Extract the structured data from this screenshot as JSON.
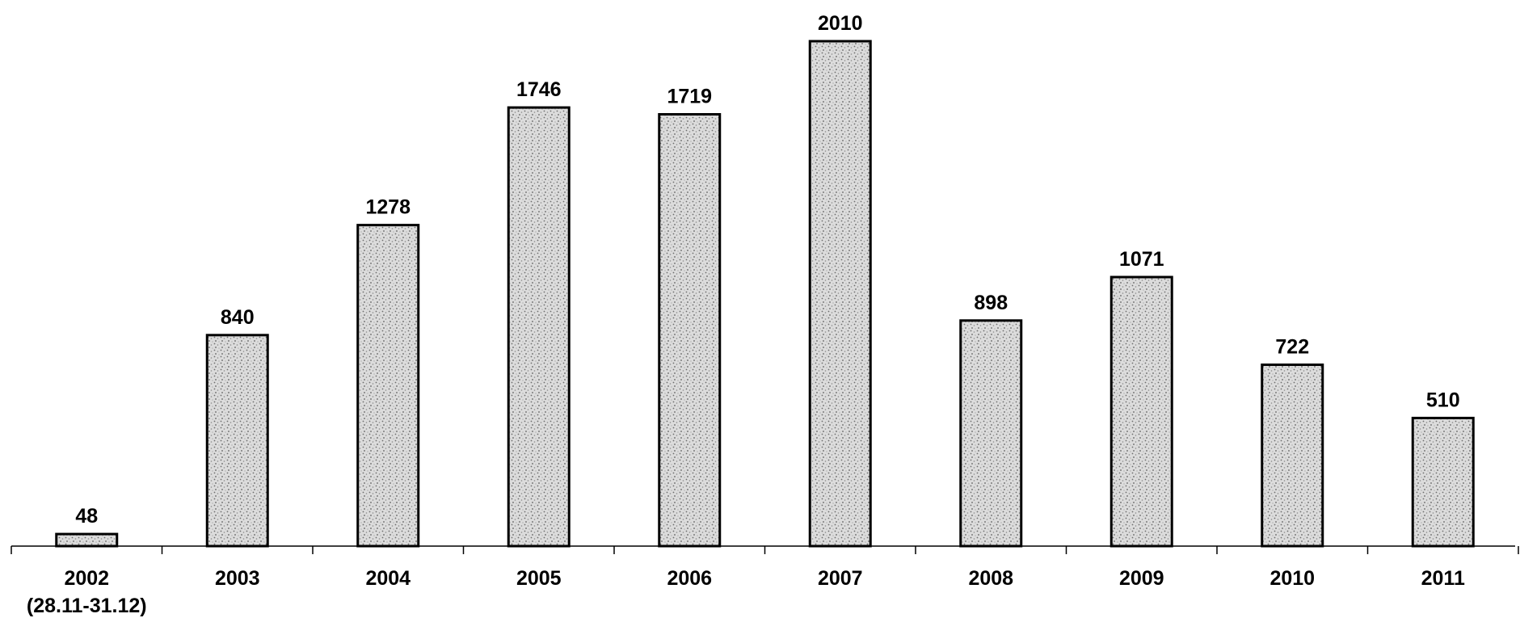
{
  "chart_data": {
    "type": "bar",
    "categories": [
      "2002",
      "2003",
      "2004",
      "2005",
      "2006",
      "2007",
      "2008",
      "2009",
      "2010",
      "2011"
    ],
    "category_sublabels": [
      "(28.11-31.12)",
      "",
      "",
      "",
      "",
      "",
      "",
      "",
      "",
      ""
    ],
    "values": [
      48,
      840,
      1278,
      1746,
      1719,
      2010,
      898,
      1071,
      722,
      510
    ],
    "data_labels": [
      "48",
      "840",
      "1278",
      "1746",
      "1719",
      "2010",
      "898",
      "1071",
      "722",
      "510"
    ],
    "title": "",
    "xlabel": "",
    "ylabel": "",
    "ylim": [
      0,
      2010
    ],
    "grid": false,
    "legend": "none",
    "bar_fill": "#d4d4d4",
    "bar_stroke": "#000000"
  }
}
